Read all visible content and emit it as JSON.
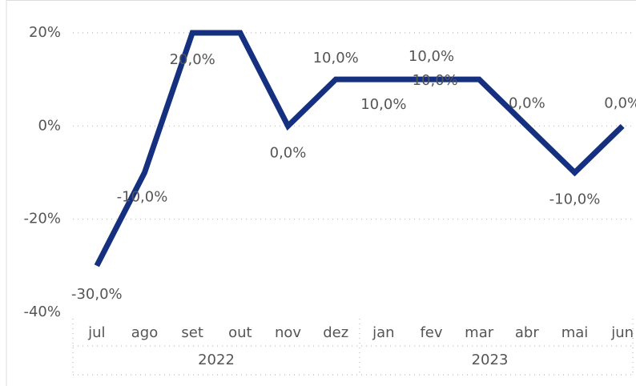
{
  "chart_data": {
    "type": "line",
    "categories": [
      "jul",
      "ago",
      "set",
      "out",
      "nov",
      "dez",
      "jan",
      "fev",
      "mar",
      "abr",
      "mai",
      "jun"
    ],
    "groups": [
      {
        "label": "2022",
        "count": 6
      },
      {
        "label": "2023",
        "count": 6
      }
    ],
    "series": [
      {
        "color": "#14307f",
        "values": [
          -30,
          -10,
          20,
          20,
          0,
          10,
          10,
          10,
          10,
          0,
          -10,
          0
        ],
        "value_labels": [
          "-30,0%",
          "-10,0%",
          "20,0%",
          null,
          "0,0%",
          "10,0%",
          "10,0%",
          "10,0%",
          "10,0%",
          "0,0%",
          "-10,0%",
          "0,0%"
        ]
      }
    ],
    "ylim": [
      -40,
      20
    ],
    "yticks": [
      {
        "value": 20,
        "label": "20%"
      },
      {
        "value": 0,
        "label": "0%"
      },
      {
        "value": -20,
        "label": "-20%"
      },
      {
        "value": -40,
        "label": "-40%"
      }
    ],
    "grid": true
  }
}
